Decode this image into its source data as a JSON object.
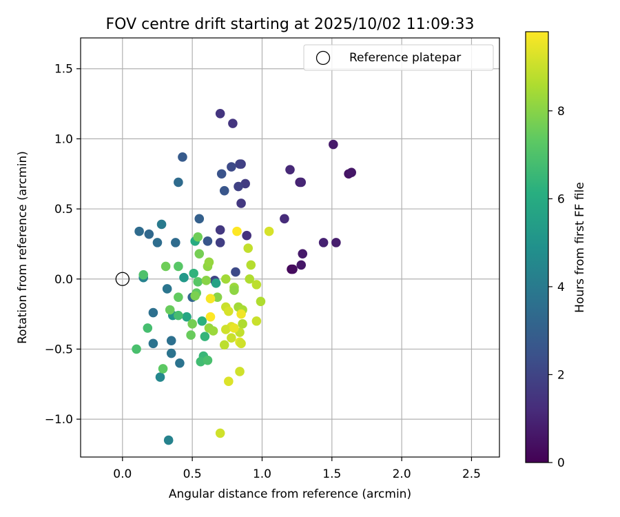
{
  "chart_data": {
    "type": "scatter",
    "title": "FOV centre drift starting at 2025/10/02 11:09:33",
    "xlabel": "Angular distance from reference (arcmin)",
    "ylabel": "Rotation from reference (arcmin)",
    "xlim": [
      -0.3,
      2.7
    ],
    "ylim": [
      -1.27,
      1.72
    ],
    "xticks": [
      0.0,
      0.5,
      1.0,
      1.5,
      2.0,
      2.5
    ],
    "xtick_labels": [
      "0.0",
      "0.5",
      "1.0",
      "1.5",
      "2.0",
      "2.5"
    ],
    "yticks": [
      -1.0,
      -0.5,
      0.0,
      0.5,
      1.0,
      1.5
    ],
    "ytick_labels": [
      "−1.0",
      "−0.5",
      "0.0",
      "0.5",
      "1.0",
      "1.5"
    ],
    "grid": true,
    "legend": {
      "position": "top-right",
      "entries": [
        "Reference platepar"
      ]
    },
    "reference_point": {
      "x": 0.0,
      "y": 0.0,
      "label": "Reference platepar"
    },
    "colorbar": {
      "label": "Hours from first FF file",
      "min": 0,
      "max": 9.8,
      "ticks": [
        0,
        2,
        4,
        6,
        8
      ],
      "tick_labels": [
        "0",
        "2",
        "4",
        "6",
        "8"
      ],
      "colormap": "viridis"
    },
    "points": [
      {
        "x": 1.21,
        "y": 0.07,
        "h": 0.1
      },
      {
        "x": 1.22,
        "y": 0.07,
        "h": 0.3
      },
      {
        "x": 1.28,
        "y": 0.1,
        "h": 0.6
      },
      {
        "x": 1.29,
        "y": 0.18,
        "h": 0.7
      },
      {
        "x": 1.53,
        "y": 0.26,
        "h": 0.8
      },
      {
        "x": 1.44,
        "y": 0.26,
        "h": 0.9
      },
      {
        "x": 1.62,
        "y": 0.75,
        "h": 0.5
      },
      {
        "x": 1.64,
        "y": 0.76,
        "h": 0.6
      },
      {
        "x": 1.51,
        "y": 0.96,
        "h": 0.7
      },
      {
        "x": 1.27,
        "y": 0.69,
        "h": 0.9
      },
      {
        "x": 1.28,
        "y": 0.69,
        "h": 1.0
      },
      {
        "x": 1.2,
        "y": 0.78,
        "h": 1.1
      },
      {
        "x": 1.16,
        "y": 0.43,
        "h": 1.2
      },
      {
        "x": 0.89,
        "y": 0.31,
        "h": 1.4
      },
      {
        "x": 0.7,
        "y": 1.18,
        "h": 1.5
      },
      {
        "x": 0.79,
        "y": 1.11,
        "h": 1.5
      },
      {
        "x": 0.85,
        "y": 0.82,
        "h": 1.8
      },
      {
        "x": 0.84,
        "y": 0.82,
        "h": 1.9
      },
      {
        "x": 0.88,
        "y": 0.68,
        "h": 1.7
      },
      {
        "x": 0.83,
        "y": 0.66,
        "h": 1.9
      },
      {
        "x": 0.85,
        "y": 0.54,
        "h": 1.6
      },
      {
        "x": 0.7,
        "y": 0.35,
        "h": 1.6
      },
      {
        "x": 0.7,
        "y": 0.26,
        "h": 1.8
      },
      {
        "x": 0.81,
        "y": 0.05,
        "h": 2.2
      },
      {
        "x": 0.66,
        "y": -0.01,
        "h": 2.0
      },
      {
        "x": 0.78,
        "y": 0.8,
        "h": 2.2
      },
      {
        "x": 0.71,
        "y": 0.75,
        "h": 2.5
      },
      {
        "x": 0.73,
        "y": 0.63,
        "h": 2.6
      },
      {
        "x": 0.43,
        "y": 0.87,
        "h": 2.8
      },
      {
        "x": 0.61,
        "y": 0.27,
        "h": 2.6
      },
      {
        "x": 0.55,
        "y": 0.43,
        "h": 3.0
      },
      {
        "x": 0.4,
        "y": 0.69,
        "h": 3.4
      },
      {
        "x": 0.19,
        "y": 0.32,
        "h": 3.3
      },
      {
        "x": 0.12,
        "y": 0.34,
        "h": 3.4
      },
      {
        "x": 0.25,
        "y": 0.26,
        "h": 3.5
      },
      {
        "x": 0.38,
        "y": 0.26,
        "h": 3.4
      },
      {
        "x": 0.28,
        "y": 0.39,
        "h": 4.0
      },
      {
        "x": 0.22,
        "y": -0.24,
        "h": 3.6
      },
      {
        "x": 0.22,
        "y": -0.46,
        "h": 3.7
      },
      {
        "x": 0.35,
        "y": -0.44,
        "h": 3.6
      },
      {
        "x": 0.35,
        "y": -0.53,
        "h": 3.7
      },
      {
        "x": 0.41,
        "y": -0.6,
        "h": 3.7
      },
      {
        "x": 0.5,
        "y": -0.13,
        "h": 3.2
      },
      {
        "x": 0.32,
        "y": -0.07,
        "h": 3.8
      },
      {
        "x": 0.15,
        "y": 0.01,
        "h": 4.3
      },
      {
        "x": 0.33,
        "y": -1.15,
        "h": 4.3
      },
      {
        "x": 0.27,
        "y": -0.7,
        "h": 4.5
      },
      {
        "x": 0.36,
        "y": -0.26,
        "h": 5.0
      },
      {
        "x": 0.44,
        "y": 0.01,
        "h": 5.2
      },
      {
        "x": 0.46,
        "y": -0.27,
        "h": 5.8
      },
      {
        "x": 0.67,
        "y": -0.03,
        "h": 5.6
      },
      {
        "x": 0.52,
        "y": 0.27,
        "h": 6.0
      },
      {
        "x": 0.51,
        "y": 0.04,
        "h": 6.3
      },
      {
        "x": 0.59,
        "y": -0.41,
        "h": 6.4
      },
      {
        "x": 0.57,
        "y": -0.3,
        "h": 6.2
      },
      {
        "x": 0.58,
        "y": -0.55,
        "h": 6.5
      },
      {
        "x": 0.56,
        "y": -0.59,
        "h": 6.7
      },
      {
        "x": 0.61,
        "y": -0.58,
        "h": 6.9
      },
      {
        "x": 0.4,
        "y": -0.26,
        "h": 6.8
      },
      {
        "x": 0.18,
        "y": -0.35,
        "h": 6.8
      },
      {
        "x": 0.1,
        "y": -0.5,
        "h": 6.9
      },
      {
        "x": 0.29,
        "y": -0.64,
        "h": 7.3
      },
      {
        "x": 0.15,
        "y": 0.03,
        "h": 7.0
      },
      {
        "x": 0.4,
        "y": 0.09,
        "h": 7.2
      },
      {
        "x": 0.4,
        "y": -0.13,
        "h": 7.4
      },
      {
        "x": 0.54,
        "y": -0.02,
        "h": 7.2
      },
      {
        "x": 0.53,
        "y": -0.1,
        "h": 7.4
      },
      {
        "x": 0.54,
        "y": 0.3,
        "h": 7.6
      },
      {
        "x": 0.55,
        "y": 0.18,
        "h": 7.7
      },
      {
        "x": 0.31,
        "y": 0.09,
        "h": 7.6
      },
      {
        "x": 0.34,
        "y": -0.22,
        "h": 7.5
      },
      {
        "x": 0.49,
        "y": -0.4,
        "h": 7.5
      },
      {
        "x": 0.5,
        "y": -0.32,
        "h": 7.7
      },
      {
        "x": 0.52,
        "y": -0.12,
        "h": 7.8
      },
      {
        "x": 0.6,
        "y": -0.01,
        "h": 8.0
      },
      {
        "x": 0.61,
        "y": 0.09,
        "h": 8.1
      },
      {
        "x": 0.62,
        "y": 0.12,
        "h": 8.2
      },
      {
        "x": 0.62,
        "y": -0.35,
        "h": 8.2
      },
      {
        "x": 0.65,
        "y": -0.37,
        "h": 8.3
      },
      {
        "x": 0.68,
        "y": -0.13,
        "h": 8.0
      },
      {
        "x": 0.74,
        "y": 0.0,
        "h": 8.4
      },
      {
        "x": 0.8,
        "y": -0.06,
        "h": 8.3
      },
      {
        "x": 0.8,
        "y": -0.08,
        "h": 8.1
      },
      {
        "x": 0.83,
        "y": -0.2,
        "h": 8.4
      },
      {
        "x": 0.86,
        "y": -0.22,
        "h": 8.5
      },
      {
        "x": 0.86,
        "y": -0.32,
        "h": 8.6
      },
      {
        "x": 0.91,
        "y": 0.0,
        "h": 8.6
      },
      {
        "x": 0.92,
        "y": 0.1,
        "h": 8.7
      },
      {
        "x": 0.9,
        "y": 0.22,
        "h": 8.9
      },
      {
        "x": 0.96,
        "y": -0.04,
        "h": 8.8
      },
      {
        "x": 0.99,
        "y": -0.16,
        "h": 8.6
      },
      {
        "x": 0.96,
        "y": -0.3,
        "h": 9.0
      },
      {
        "x": 1.05,
        "y": 0.34,
        "h": 9.2
      },
      {
        "x": 0.74,
        "y": -0.2,
        "h": 9.0
      },
      {
        "x": 0.76,
        "y": -0.23,
        "h": 9.2
      },
      {
        "x": 0.78,
        "y": -0.34,
        "h": 9.3
      },
      {
        "x": 0.74,
        "y": -0.36,
        "h": 9.1
      },
      {
        "x": 0.78,
        "y": -0.42,
        "h": 9.0
      },
      {
        "x": 0.73,
        "y": -0.47,
        "h": 8.8
      },
      {
        "x": 0.84,
        "y": -0.38,
        "h": 8.9
      },
      {
        "x": 0.84,
        "y": -0.45,
        "h": 9.4
      },
      {
        "x": 0.85,
        "y": -0.46,
        "h": 9.1
      },
      {
        "x": 0.84,
        "y": -0.66,
        "h": 9.1
      },
      {
        "x": 0.76,
        "y": -0.73,
        "h": 9.3
      },
      {
        "x": 0.7,
        "y": -1.1,
        "h": 9.1
      },
      {
        "x": 0.85,
        "y": -0.25,
        "h": 9.6
      },
      {
        "x": 0.63,
        "y": -0.14,
        "h": 9.7
      },
      {
        "x": 0.63,
        "y": -0.27,
        "h": 9.8
      },
      {
        "x": 0.82,
        "y": 0.34,
        "h": 9.8
      },
      {
        "x": 0.8,
        "y": -0.35,
        "h": 9.5
      }
    ]
  }
}
